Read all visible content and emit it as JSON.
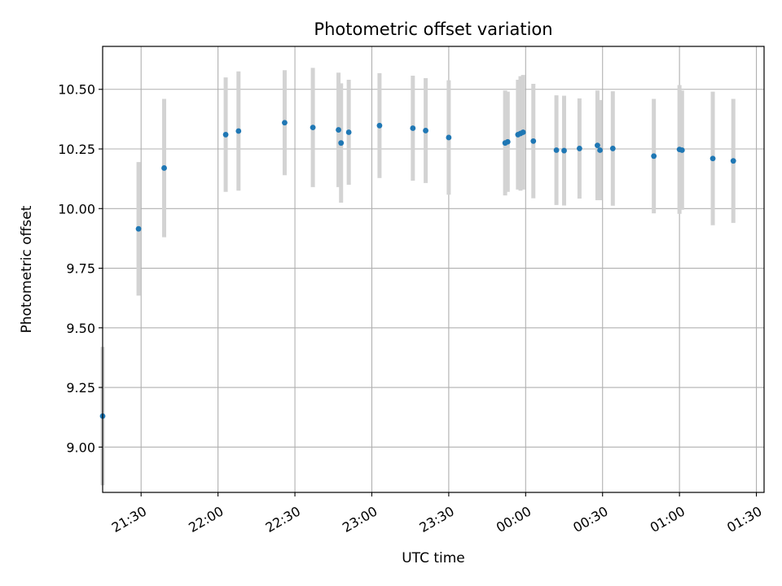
{
  "chart_data": {
    "type": "scatter",
    "title": "Photometric offset variation",
    "xlabel": "UTC time",
    "ylabel": "Photometric offset",
    "ylim": [
      8.81,
      10.68
    ],
    "y_ticks": [
      9.0,
      9.25,
      9.5,
      9.75,
      10.0,
      10.25,
      10.5
    ],
    "y_tick_labels": [
      "9.00",
      "9.25",
      "9.50",
      "9.75",
      "10.00",
      "10.25",
      "10.50"
    ],
    "xlim": [
      "21:15",
      "01:33"
    ],
    "x_ticks": [
      "21:30",
      "22:00",
      "22:30",
      "23:00",
      "23:30",
      "00:00",
      "00:30",
      "01:00",
      "01:30"
    ],
    "x_tick_labels": [
      "21:30",
      "22:00",
      "22:30",
      "23:00",
      "23:30",
      "00:00",
      "00:30",
      "01:00",
      "01:30"
    ],
    "grid": true,
    "point_color": "#1f77b4",
    "errorbar_color": "#d3d3d3",
    "points": [
      {
        "x": "21:15",
        "y": 9.13,
        "yerr": 0.29
      },
      {
        "x": "21:29",
        "y": 9.915,
        "yerr": 0.28
      },
      {
        "x": "21:39",
        "y": 10.17,
        "yerr": 0.29
      },
      {
        "x": "22:03",
        "y": 10.31,
        "yerr": 0.24
      },
      {
        "x": "22:08",
        "y": 10.325,
        "yerr": 0.25
      },
      {
        "x": "22:26",
        "y": 10.36,
        "yerr": 0.22
      },
      {
        "x": "22:37",
        "y": 10.34,
        "yerr": 0.25
      },
      {
        "x": "22:47",
        "y": 10.33,
        "yerr": 0.24
      },
      {
        "x": "22:48",
        "y": 10.275,
        "yerr": 0.25
      },
      {
        "x": "22:51",
        "y": 10.32,
        "yerr": 0.22
      },
      {
        "x": "23:03",
        "y": 10.348,
        "yerr": 0.22
      },
      {
        "x": "23:16",
        "y": 10.337,
        "yerr": 0.22
      },
      {
        "x": "23:21",
        "y": 10.327,
        "yerr": 0.22
      },
      {
        "x": "23:30",
        "y": 10.298,
        "yerr": 0.24
      },
      {
        "x": "23:52",
        "y": 10.275,
        "yerr": 0.22
      },
      {
        "x": "23:53",
        "y": 10.28,
        "yerr": 0.21
      },
      {
        "x": "23:57",
        "y": 10.31,
        "yerr": 0.23
      },
      {
        "x": "23:58",
        "y": 10.315,
        "yerr": 0.24
      },
      {
        "x": "23:59",
        "y": 10.32,
        "yerr": 0.24
      },
      {
        "x": "00:03",
        "y": 10.283,
        "yerr": 0.24
      },
      {
        "x": "00:12",
        "y": 10.245,
        "yerr": 0.23
      },
      {
        "x": "00:15",
        "y": 10.243,
        "yerr": 0.23
      },
      {
        "x": "00:21",
        "y": 10.252,
        "yerr": 0.21
      },
      {
        "x": "00:28",
        "y": 10.265,
        "yerr": 0.23
      },
      {
        "x": "00:29",
        "y": 10.245,
        "yerr": 0.21
      },
      {
        "x": "00:34",
        "y": 10.252,
        "yerr": 0.24
      },
      {
        "x": "00:50",
        "y": 10.22,
        "yerr": 0.24
      },
      {
        "x": "01:00",
        "y": 10.248,
        "yerr": 0.27
      },
      {
        "x": "01:01",
        "y": 10.245,
        "yerr": 0.25
      },
      {
        "x": "01:13",
        "y": 10.21,
        "yerr": 0.28
      },
      {
        "x": "01:21",
        "y": 10.2,
        "yerr": 0.26
      }
    ]
  }
}
